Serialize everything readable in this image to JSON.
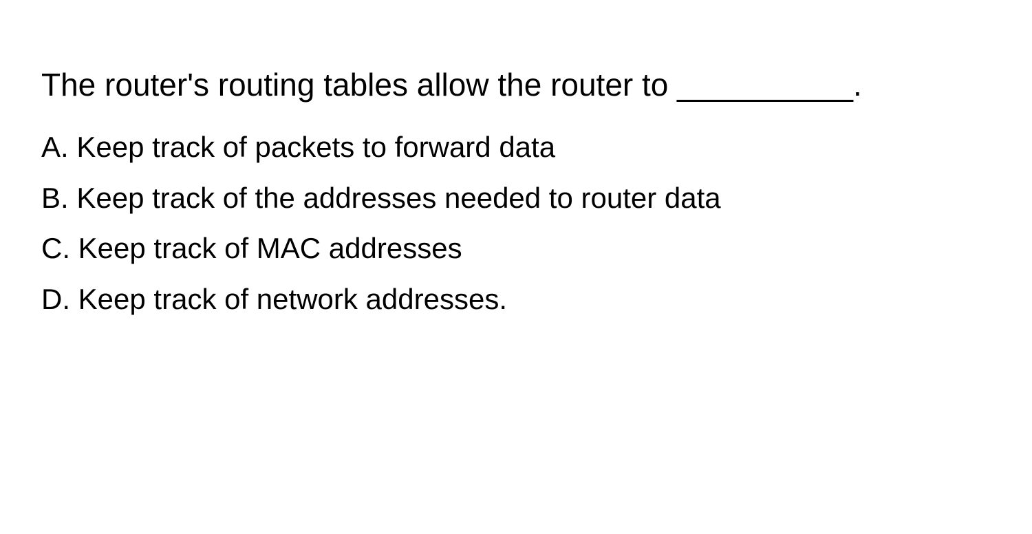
{
  "question": {
    "text": "The router's routing tables allow the router to __________.",
    "font_size": 46,
    "color": "#000000"
  },
  "options": {
    "a": "A. Keep track of packets to forward data",
    "b": "B. Keep track of the addresses needed to router data",
    "c": "C. Keep track of MAC addresses",
    "d": "D. Keep track of network addresses.",
    "font_size": 42,
    "color": "#000000"
  },
  "background_color": "#ffffff"
}
